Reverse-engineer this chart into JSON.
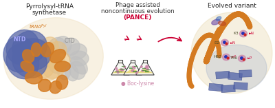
{
  "panel1_title_line1": "Pyrrolysyl-tRNA",
  "panel1_title_line2": "synthetase",
  "panel2_title_line1": "Phage assisted",
  "panel2_title_line2": "noncontinuous evolution",
  "panel2_title_line3": "(PANCE)",
  "panel3_title": "Evolved variant",
  "label_NTD": "NTD",
  "label_CTD": "CTD",
  "label_boc": "● Boc-lysine",
  "label_H62": "H62",
  "label_D2": "D2",
  "label_K3": "K3",
  "label_T56": "T56",
  "arrow_color": "#cc0033",
  "orange_color": "#d47a20",
  "blue_color": "#5566aa",
  "light_orange": "#e8c080",
  "gray_color": "#b0b0b0",
  "pink_color": "#cc88aa",
  "yellow_fill": "#e8d870",
  "bg_color": "#ffffff",
  "figsize": [
    4.0,
    1.57
  ],
  "dpi": 100
}
